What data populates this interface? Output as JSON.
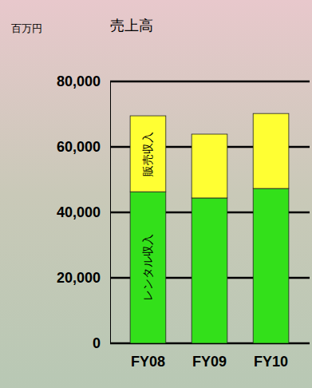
{
  "chart_data": {
    "type": "bar",
    "stacked": true,
    "title": "売上高",
    "y_label": "百万円",
    "categories": [
      "FY08",
      "FY09",
      "FY10"
    ],
    "series": [
      {
        "name": "レンタル収入",
        "color": "#33e01a",
        "values": [
          46300,
          44400,
          47300
        ]
      },
      {
        "name": "販売収入",
        "color": "#ffff33",
        "values": [
          23200,
          19500,
          22900
        ]
      }
    ],
    "ylim": [
      0,
      80000
    ],
    "yticks": [
      0,
      {
        "value": 20000,
        "label": "20,000"
      },
      {
        "value": 40000,
        "label": "40,000"
      },
      {
        "value": 60000,
        "label": "60,000"
      },
      {
        "value": 80000,
        "label": "80,000"
      }
    ],
    "grid": true
  }
}
